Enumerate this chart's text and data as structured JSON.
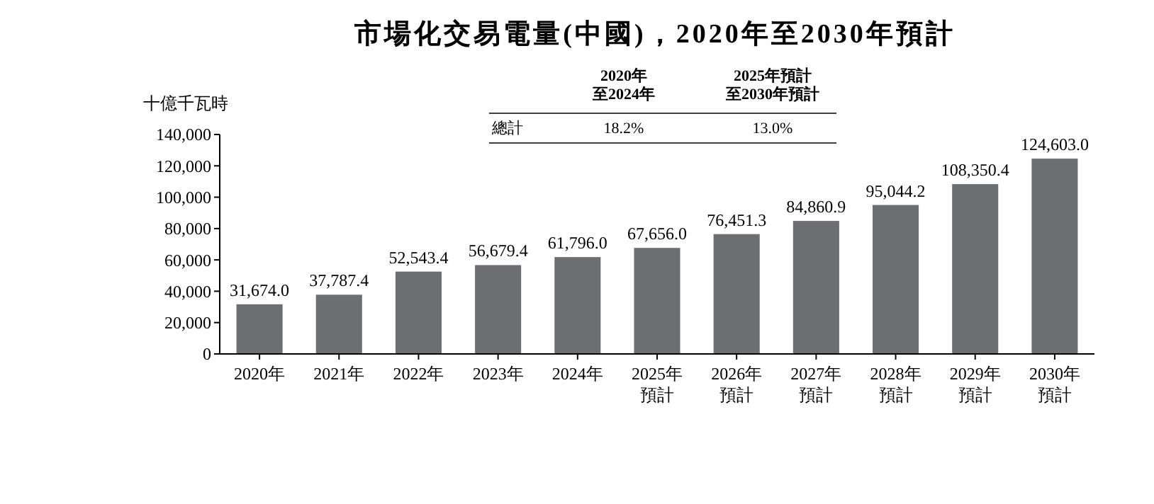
{
  "chart_data": {
    "type": "bar",
    "title": "市場化交易電量(中國)，2020年至2030年預計",
    "ylabel": "十億千瓦時",
    "categories": [
      "2020年",
      "2021年",
      "2022年",
      "2023年",
      "2024年",
      "2025年預計",
      "2026年預計",
      "2027年預計",
      "2028年預計",
      "2029年預計",
      "2030年預計"
    ],
    "values": [
      31674.0,
      37787.4,
      52543.4,
      56679.4,
      61796.0,
      67656.0,
      76451.3,
      84860.9,
      95044.2,
      108350.4,
      124603.0
    ],
    "value_labels": [
      "31,674.0",
      "37,787.4",
      "52,543.4",
      "56,679.4",
      "61,796.0",
      "67,656.0",
      "76,451.3",
      "84,860.9",
      "95,044.2",
      "108,350.4",
      "124,603.0"
    ],
    "color": "#6d6e71",
    "ylim": [
      0,
      140000
    ],
    "yticks": [
      0,
      {
        "value": 20000,
        "label": "20,000"
      },
      {
        "value": 40000,
        "label": "40,000"
      },
      {
        "value": 60000,
        "label": "60,000"
      },
      {
        "value": 80000,
        "label": "80,000"
      },
      {
        "value": 100000,
        "label": "100,000"
      },
      {
        "value": 120000,
        "label": "120,000"
      },
      {
        "value": 140000,
        "label": "140,000"
      }
    ],
    "annotations": [
      "2020年至2024年",
      "2025年預計至2030年預計",
      "總計",
      "18.2%",
      "13.0%"
    ]
  }
}
